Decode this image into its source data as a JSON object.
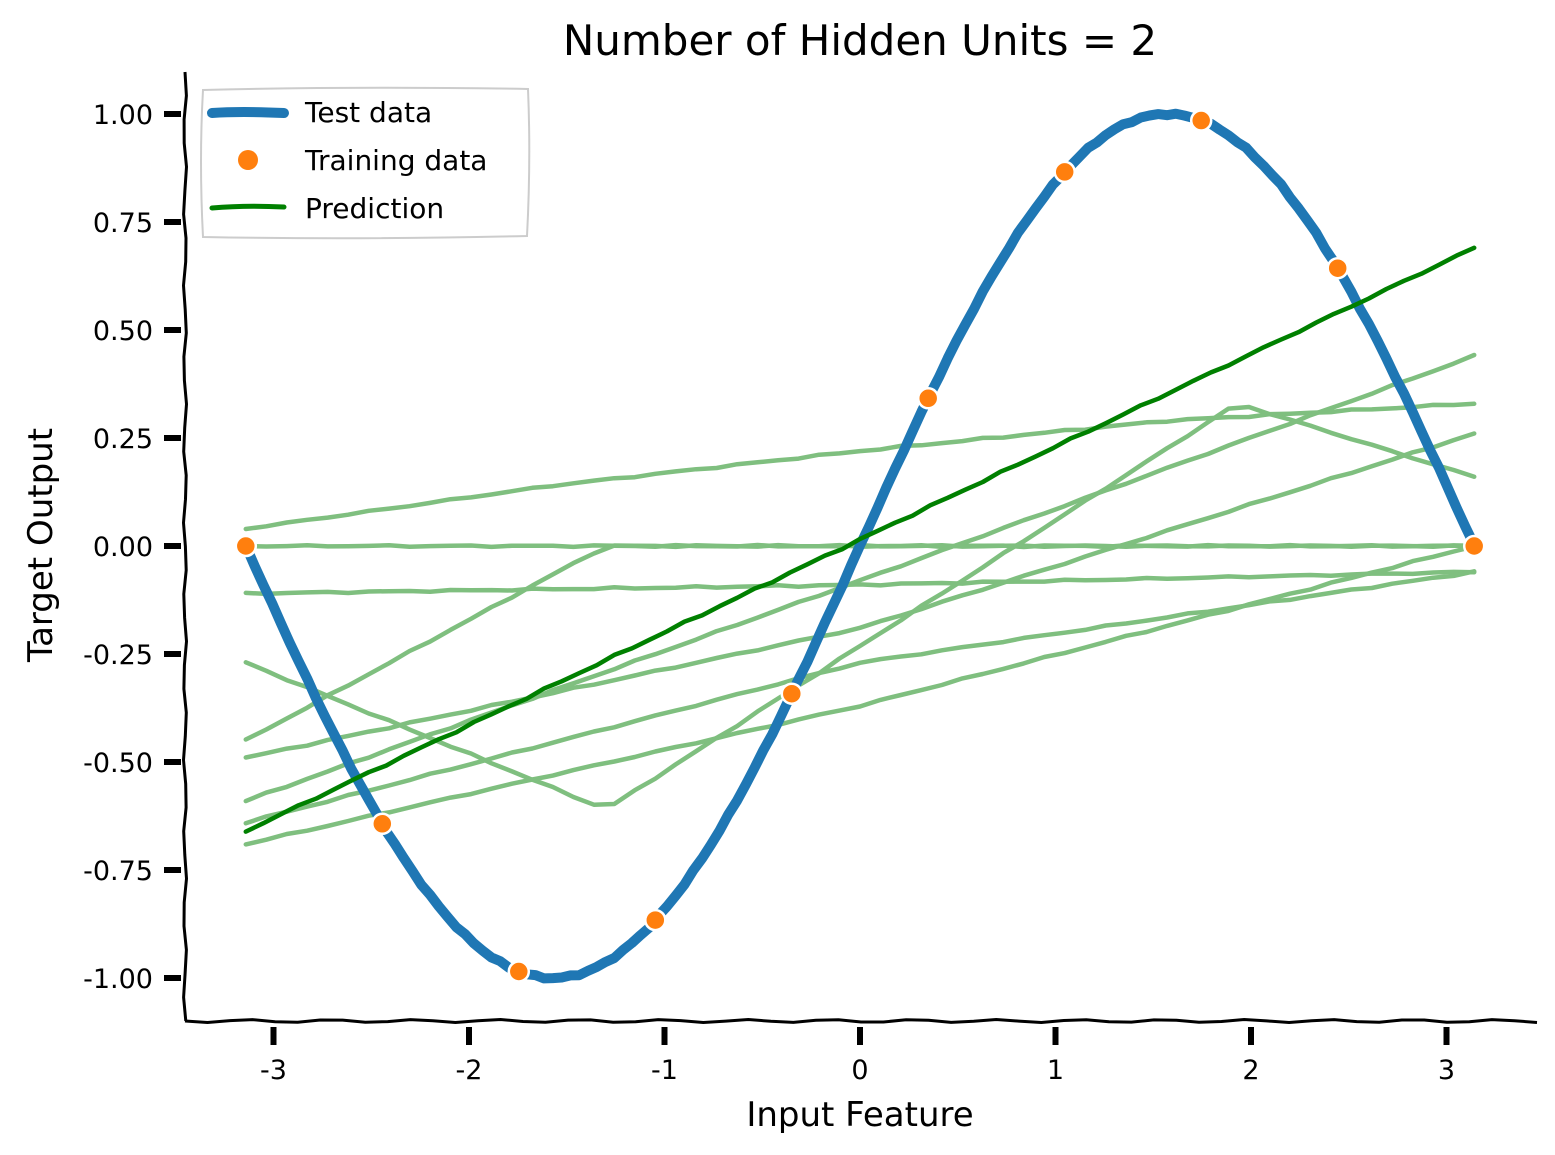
{
  "chart_data": {
    "type": "line",
    "title": "Number of Hidden Units = 2",
    "xlabel": "Input Feature",
    "ylabel": "Target Output",
    "xlim": [
      -3.45,
      3.48
    ],
    "ylim": [
      -1.1,
      1.1
    ],
    "xticks": [
      -3,
      -2,
      -1,
      0,
      1,
      2,
      3
    ],
    "xtick_labels": [
      "-3",
      "-2",
      "-1",
      "0",
      "1",
      "2",
      "3"
    ],
    "yticks": [
      1.0,
      0.75,
      0.5,
      0.25,
      0.0,
      -0.25,
      -0.5,
      -0.75,
      -1.0
    ],
    "ytick_labels": [
      "1.00",
      "0.75",
      "0.50",
      "0.25",
      "0.00",
      "-0.25",
      "-0.50",
      "-0.75",
      "-1.00"
    ],
    "grid": false,
    "legend_position": "top-left",
    "series": [
      {
        "name": "Test data",
        "kind": "line",
        "color": "#1f77b4",
        "function": "sin",
        "x_range": [
          -3.1416,
          3.1416
        ]
      },
      {
        "name": "Training data",
        "kind": "scatter",
        "color": "#ff7f0e",
        "x": [
          -3.1416,
          -2.4435,
          -1.7453,
          -1.0472,
          -0.3491,
          0.3491,
          1.0472,
          1.7453,
          2.4435,
          3.1416
        ],
        "y": [
          0.0,
          -0.643,
          -0.985,
          -0.866,
          -0.342,
          0.342,
          0.866,
          0.985,
          0.643,
          0.0
        ]
      },
      {
        "name": "Prediction",
        "kind": "line",
        "color": "#008000",
        "x": [
          -3.1416,
          3.1416
        ],
        "y": [
          -0.66,
          0.69
        ]
      }
    ],
    "ensemble_lines": {
      "color": "#7fbf7f",
      "lines": [
        {
          "x": [
            -3.1416,
            -1.57,
            0,
            1.57,
            3.1416
          ],
          "y": [
            0.04,
            0.14,
            0.22,
            0.29,
            0.33
          ]
        },
        {
          "x": [
            -3.1416,
            0,
            3.1416
          ],
          "y": [
            0.0,
            0.0,
            0.0
          ]
        },
        {
          "x": [
            -3.1416,
            0,
            3.1416
          ],
          "y": [
            -0.11,
            -0.09,
            -0.06
          ]
        },
        {
          "x": [
            -3.1416,
            -1.3,
            1.93,
            3.1416
          ],
          "y": [
            -0.27,
            -0.61,
            0.33,
            0.16
          ]
        },
        {
          "x": [
            -3.1416,
            -1.3,
            3.1416
          ],
          "y": [
            -0.45,
            0.0,
            0.0
          ]
        },
        {
          "x": [
            -3.1416,
            0,
            3.1416
          ],
          "y": [
            -0.59,
            -0.08,
            0.44
          ]
        },
        {
          "x": [
            -3.1416,
            0,
            3.1416
          ],
          "y": [
            -0.49,
            -0.19,
            0.26
          ]
        },
        {
          "x": [
            -3.1416,
            0,
            3.1416
          ],
          "y": [
            -0.64,
            -0.27,
            -0.06
          ]
        },
        {
          "x": [
            -3.1416,
            0,
            3.1416
          ],
          "y": [
            -0.69,
            -0.37,
            0.0
          ]
        }
      ]
    }
  }
}
